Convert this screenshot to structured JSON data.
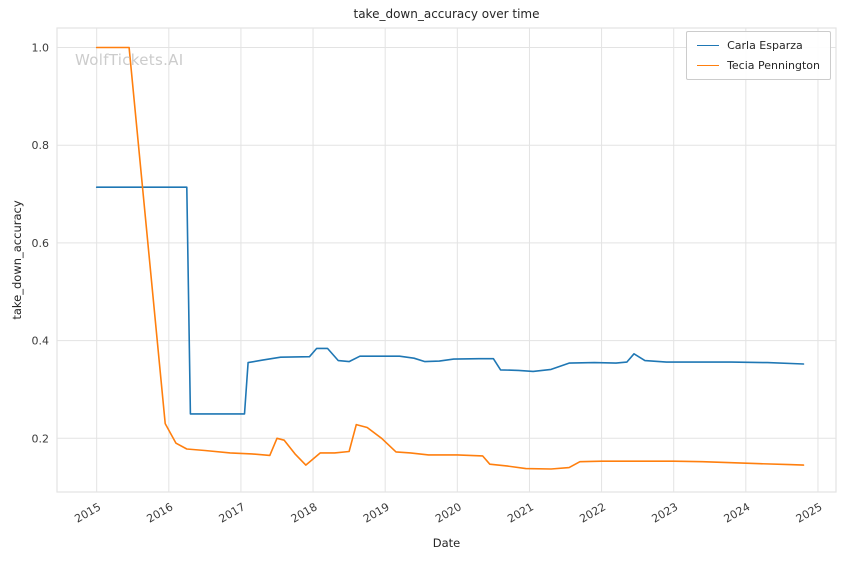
{
  "watermark": "WolfTickets.AI",
  "chart_data": {
    "type": "line",
    "title": "take_down_accuracy over time",
    "xlabel": "Date",
    "ylabel": "take_down_accuracy",
    "xlim": [
      2014.45,
      2025.25
    ],
    "ylim": [
      0.09,
      1.04
    ],
    "x_ticks": [
      2015,
      2016,
      2017,
      2018,
      2019,
      2020,
      2021,
      2022,
      2023,
      2024,
      2025
    ],
    "y_ticks": [
      0.2,
      0.4,
      0.6,
      0.8,
      1.0
    ],
    "grid": true,
    "grid_color": "#e3e3e3",
    "legend_position": "top-right",
    "series": [
      {
        "name": "Carla Esparza",
        "color": "#1f77b4",
        "x": [
          2015.0,
          2016.25,
          2016.3,
          2017.05,
          2017.1,
          2017.3,
          2017.55,
          2017.95,
          2018.05,
          2018.2,
          2018.35,
          2018.5,
          2018.65,
          2019.0,
          2019.2,
          2019.4,
          2019.55,
          2019.75,
          2019.95,
          2020.3,
          2020.5,
          2020.6,
          2020.85,
          2021.05,
          2021.3,
          2021.55,
          2021.9,
          2022.2,
          2022.35,
          2022.45,
          2022.6,
          2022.9,
          2023.3,
          2023.8,
          2024.3,
          2024.8
        ],
        "y": [
          0.714,
          0.714,
          0.25,
          0.25,
          0.355,
          0.36,
          0.366,
          0.367,
          0.384,
          0.384,
          0.359,
          0.357,
          0.368,
          0.368,
          0.368,
          0.364,
          0.357,
          0.358,
          0.362,
          0.363,
          0.363,
          0.34,
          0.339,
          0.337,
          0.341,
          0.354,
          0.355,
          0.354,
          0.356,
          0.373,
          0.359,
          0.356,
          0.356,
          0.356,
          0.355,
          0.352
        ]
      },
      {
        "name": "Tecia Pennington",
        "color": "#ff7f0e",
        "x": [
          2015.0,
          2015.45,
          2015.95,
          2016.1,
          2016.25,
          2016.5,
          2016.85,
          2017.15,
          2017.4,
          2017.5,
          2017.6,
          2017.75,
          2017.9,
          2018.1,
          2018.3,
          2018.5,
          2018.6,
          2018.75,
          2018.95,
          2019.15,
          2019.35,
          2019.6,
          2020.0,
          2020.35,
          2020.45,
          2020.7,
          2020.95,
          2021.3,
          2021.55,
          2021.7,
          2022.0,
          2022.5,
          2023.0,
          2023.4,
          2023.8,
          2024.2,
          2024.6,
          2024.8
        ],
        "y": [
          1.0,
          1.0,
          0.23,
          0.19,
          0.178,
          0.175,
          0.17,
          0.168,
          0.165,
          0.2,
          0.196,
          0.168,
          0.145,
          0.17,
          0.17,
          0.173,
          0.228,
          0.222,
          0.2,
          0.172,
          0.17,
          0.166,
          0.166,
          0.164,
          0.147,
          0.143,
          0.138,
          0.137,
          0.14,
          0.152,
          0.153,
          0.153,
          0.153,
          0.152,
          0.15,
          0.148,
          0.146,
          0.145
        ]
      }
    ]
  }
}
